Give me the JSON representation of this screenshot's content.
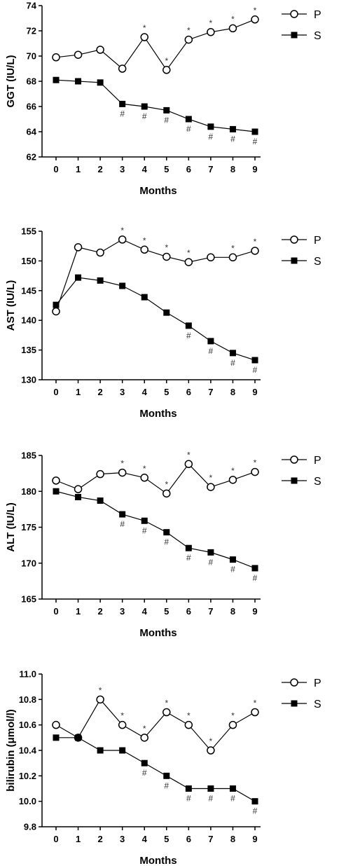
{
  "chart_data": [
    {
      "type": "line",
      "x": [
        0,
        1,
        2,
        3,
        4,
        5,
        6,
        7,
        8,
        9
      ],
      "xlabel": "Months",
      "ylabel": "GGT (IU/L)",
      "ylim": [
        62,
        74
      ],
      "yticks": [
        62,
        64,
        66,
        68,
        70,
        72,
        74
      ],
      "legend": "top-right",
      "series": [
        {
          "name": "P",
          "marker": "open-circle",
          "values": [
            69.9,
            70.1,
            70.5,
            69.0,
            71.5,
            68.9,
            71.3,
            71.9,
            72.2,
            72.9
          ],
          "annotations": [
            "",
            "",
            "",
            "",
            "*",
            "*",
            "*",
            "*",
            "*",
            "*"
          ]
        },
        {
          "name": "S",
          "marker": "filled-square",
          "values": [
            68.1,
            68.0,
            67.9,
            66.2,
            66.0,
            65.7,
            65.0,
            64.4,
            64.2,
            64.0
          ],
          "annotations": [
            "",
            "",
            "",
            "#",
            "#",
            "#",
            "#",
            "#",
            "#",
            "#"
          ]
        }
      ]
    },
    {
      "type": "line",
      "x": [
        0,
        1,
        2,
        3,
        4,
        5,
        6,
        7,
        8,
        9
      ],
      "xlabel": "Months",
      "ylabel": "AST  (IU/L)",
      "ylim": [
        130,
        155
      ],
      "yticks": [
        130,
        135,
        140,
        145,
        150,
        155
      ],
      "legend": "top-right",
      "series": [
        {
          "name": "P",
          "marker": "open-circle",
          "values": [
            141.5,
            152.3,
            151.4,
            153.6,
            151.9,
            150.7,
            149.8,
            150.6,
            150.6,
            151.7
          ],
          "annotations": [
            "",
            "",
            "",
            "*",
            "*",
            "*",
            "*",
            "",
            "*",
            "*"
          ]
        },
        {
          "name": "S",
          "marker": "filled-square",
          "values": [
            142.6,
            147.2,
            146.7,
            145.8,
            143.9,
            141.3,
            139.1,
            136.5,
            134.5,
            133.3
          ],
          "annotations": [
            "",
            "",
            "",
            "",
            "",
            "",
            "#",
            "#",
            "#",
            "#"
          ]
        }
      ]
    },
    {
      "type": "line",
      "x": [
        0,
        1,
        2,
        3,
        4,
        5,
        6,
        7,
        8,
        9
      ],
      "xlabel": "Months",
      "ylabel": "ALT  (IU/L)",
      "ylim": [
        165,
        185
      ],
      "yticks": [
        165,
        170,
        175,
        180,
        185
      ],
      "legend": "top-right",
      "series": [
        {
          "name": "P",
          "marker": "open-circle",
          "values": [
            181.5,
            180.3,
            182.4,
            182.6,
            181.9,
            179.7,
            183.8,
            180.6,
            181.6,
            182.7
          ],
          "annotations": [
            "",
            "",
            "",
            "*",
            "*",
            "*",
            "*",
            "*",
            "*",
            "*"
          ]
        },
        {
          "name": "S",
          "marker": "filled-square",
          "values": [
            180.0,
            179.2,
            178.7,
            176.8,
            175.9,
            174.3,
            172.1,
            171.5,
            170.5,
            169.3
          ],
          "annotations": [
            "",
            "",
            "",
            "#",
            "#",
            "#",
            "#",
            "#",
            "#",
            "#"
          ]
        }
      ]
    },
    {
      "type": "line",
      "x": [
        0,
        1,
        2,
        3,
        4,
        5,
        6,
        7,
        8,
        9
      ],
      "xlabel": "Months",
      "ylabel": "bilirubin  (μmol/l)",
      "ylim": [
        9.8,
        11.0
      ],
      "yticks": [
        "9.8",
        "10.0",
        "10.2",
        "10.4",
        "10.6",
        "10.8",
        "11.0"
      ],
      "legend": "top-right",
      "series": [
        {
          "name": "P",
          "marker": "open-circle",
          "values": [
            10.6,
            10.5,
            10.8,
            10.6,
            10.5,
            10.7,
            10.6,
            10.4,
            10.6,
            10.7
          ],
          "annotations": [
            "",
            "",
            "*",
            "*",
            "*",
            "*",
            "*",
            "*",
            "*",
            "*"
          ]
        },
        {
          "name": "S",
          "marker": "filled-square",
          "values": [
            10.5,
            10.5,
            10.4,
            10.4,
            10.3,
            10.2,
            10.1,
            10.1,
            10.1,
            10.0
          ],
          "annotations": [
            "",
            "",
            "",
            "",
            "#",
            "#",
            "#",
            "#",
            "#",
            "#"
          ]
        }
      ]
    }
  ]
}
